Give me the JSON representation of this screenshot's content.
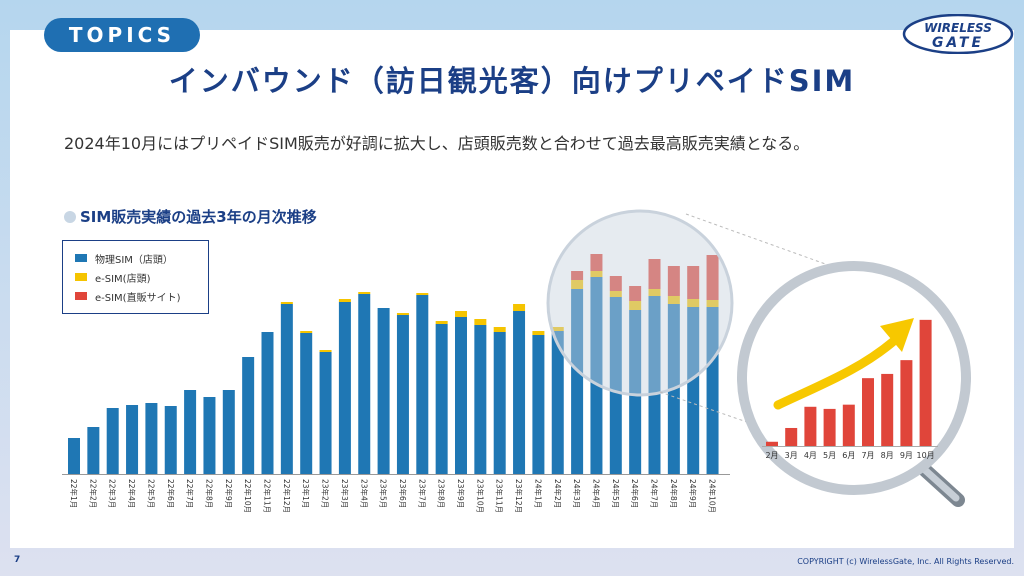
{
  "header": {
    "topics_label": "TOPICS",
    "logo_line1": "WIRELESS",
    "logo_line2": "GATE",
    "title": "インバウンド（訪日観光客）向けプリペイドSIM",
    "subtitle": "2024年10月にはプリペイドSIM販売が好調に拡大し、店頭販売数と合わせて過去最高販売実績となる。"
  },
  "chart_heading": "SIM販売実績の過去3年の月次推移",
  "footer": {
    "page_number": "7",
    "copyright": "COPYRIGHT (c) WirelessGate, Inc. All Rights Reserved."
  },
  "colors": {
    "physical": "#1f77b4",
    "esim_store": "#f5c400",
    "esim_direct": "#e0453a",
    "accent": "#1b3f86",
    "arrow": "#f7c800"
  },
  "chart_data": [
    {
      "type": "bar",
      "stacked": true,
      "title": "SIM販売実績の過去3年の月次推移",
      "legend_position": "top-left",
      "categories": [
        "22年1月",
        "22年2月",
        "22年3月",
        "22年4月",
        "22年5月",
        "22年6月",
        "22年7月",
        "22年8月",
        "22年9月",
        "22年10月",
        "22年11月",
        "22年12月",
        "23年1月",
        "23年2月",
        "23年3月",
        "23年4月",
        "23年5月",
        "23年6月",
        "23年7月",
        "23年8月",
        "23年9月",
        "23年10月",
        "23年11月",
        "23年12月",
        "24年1月",
        "24年2月",
        "24年3月",
        "24年4月",
        "24年5月",
        "24年6月",
        "24年7月",
        "24年8月",
        "24年9月",
        "24年10月"
      ],
      "series": [
        {
          "name": "物理SIM（店頭）",
          "values": [
            36,
            47,
            66,
            69,
            71,
            68,
            84,
            77,
            84,
            117,
            142,
            170,
            141,
            122,
            172,
            180,
            166,
            159,
            179,
            150,
            157,
            149,
            142,
            163,
            139,
            143,
            185,
            197,
            177,
            164,
            178,
            170,
            167,
            167
          ]
        },
        {
          "name": "e-SIM(店頭)",
          "values": [
            0,
            0,
            0,
            0,
            0,
            0,
            0,
            0,
            0,
            0,
            0,
            2,
            2,
            2,
            3,
            2,
            0,
            2,
            2,
            3,
            6,
            6,
            5,
            7,
            4,
            4,
            9,
            6,
            6,
            9,
            7,
            8,
            8,
            7
          ]
        },
        {
          "name": "e-SIM(直販サイト)",
          "values": [
            0,
            0,
            0,
            0,
            0,
            0,
            0,
            0,
            0,
            0,
            0,
            0,
            0,
            0,
            0,
            0,
            0,
            0,
            0,
            0,
            0,
            0,
            0,
            0,
            0,
            0,
            9,
            17,
            15,
            15,
            30,
            30,
            33,
            45
          ]
        }
      ]
    },
    {
      "type": "bar",
      "title": "",
      "categories": [
        "2月",
        "3月",
        "4月",
        "5月",
        "6月",
        "7月",
        "8月",
        "9月",
        "10月"
      ],
      "values": [
        4,
        17,
        37,
        35,
        39,
        64,
        68,
        81,
        119
      ]
    }
  ]
}
